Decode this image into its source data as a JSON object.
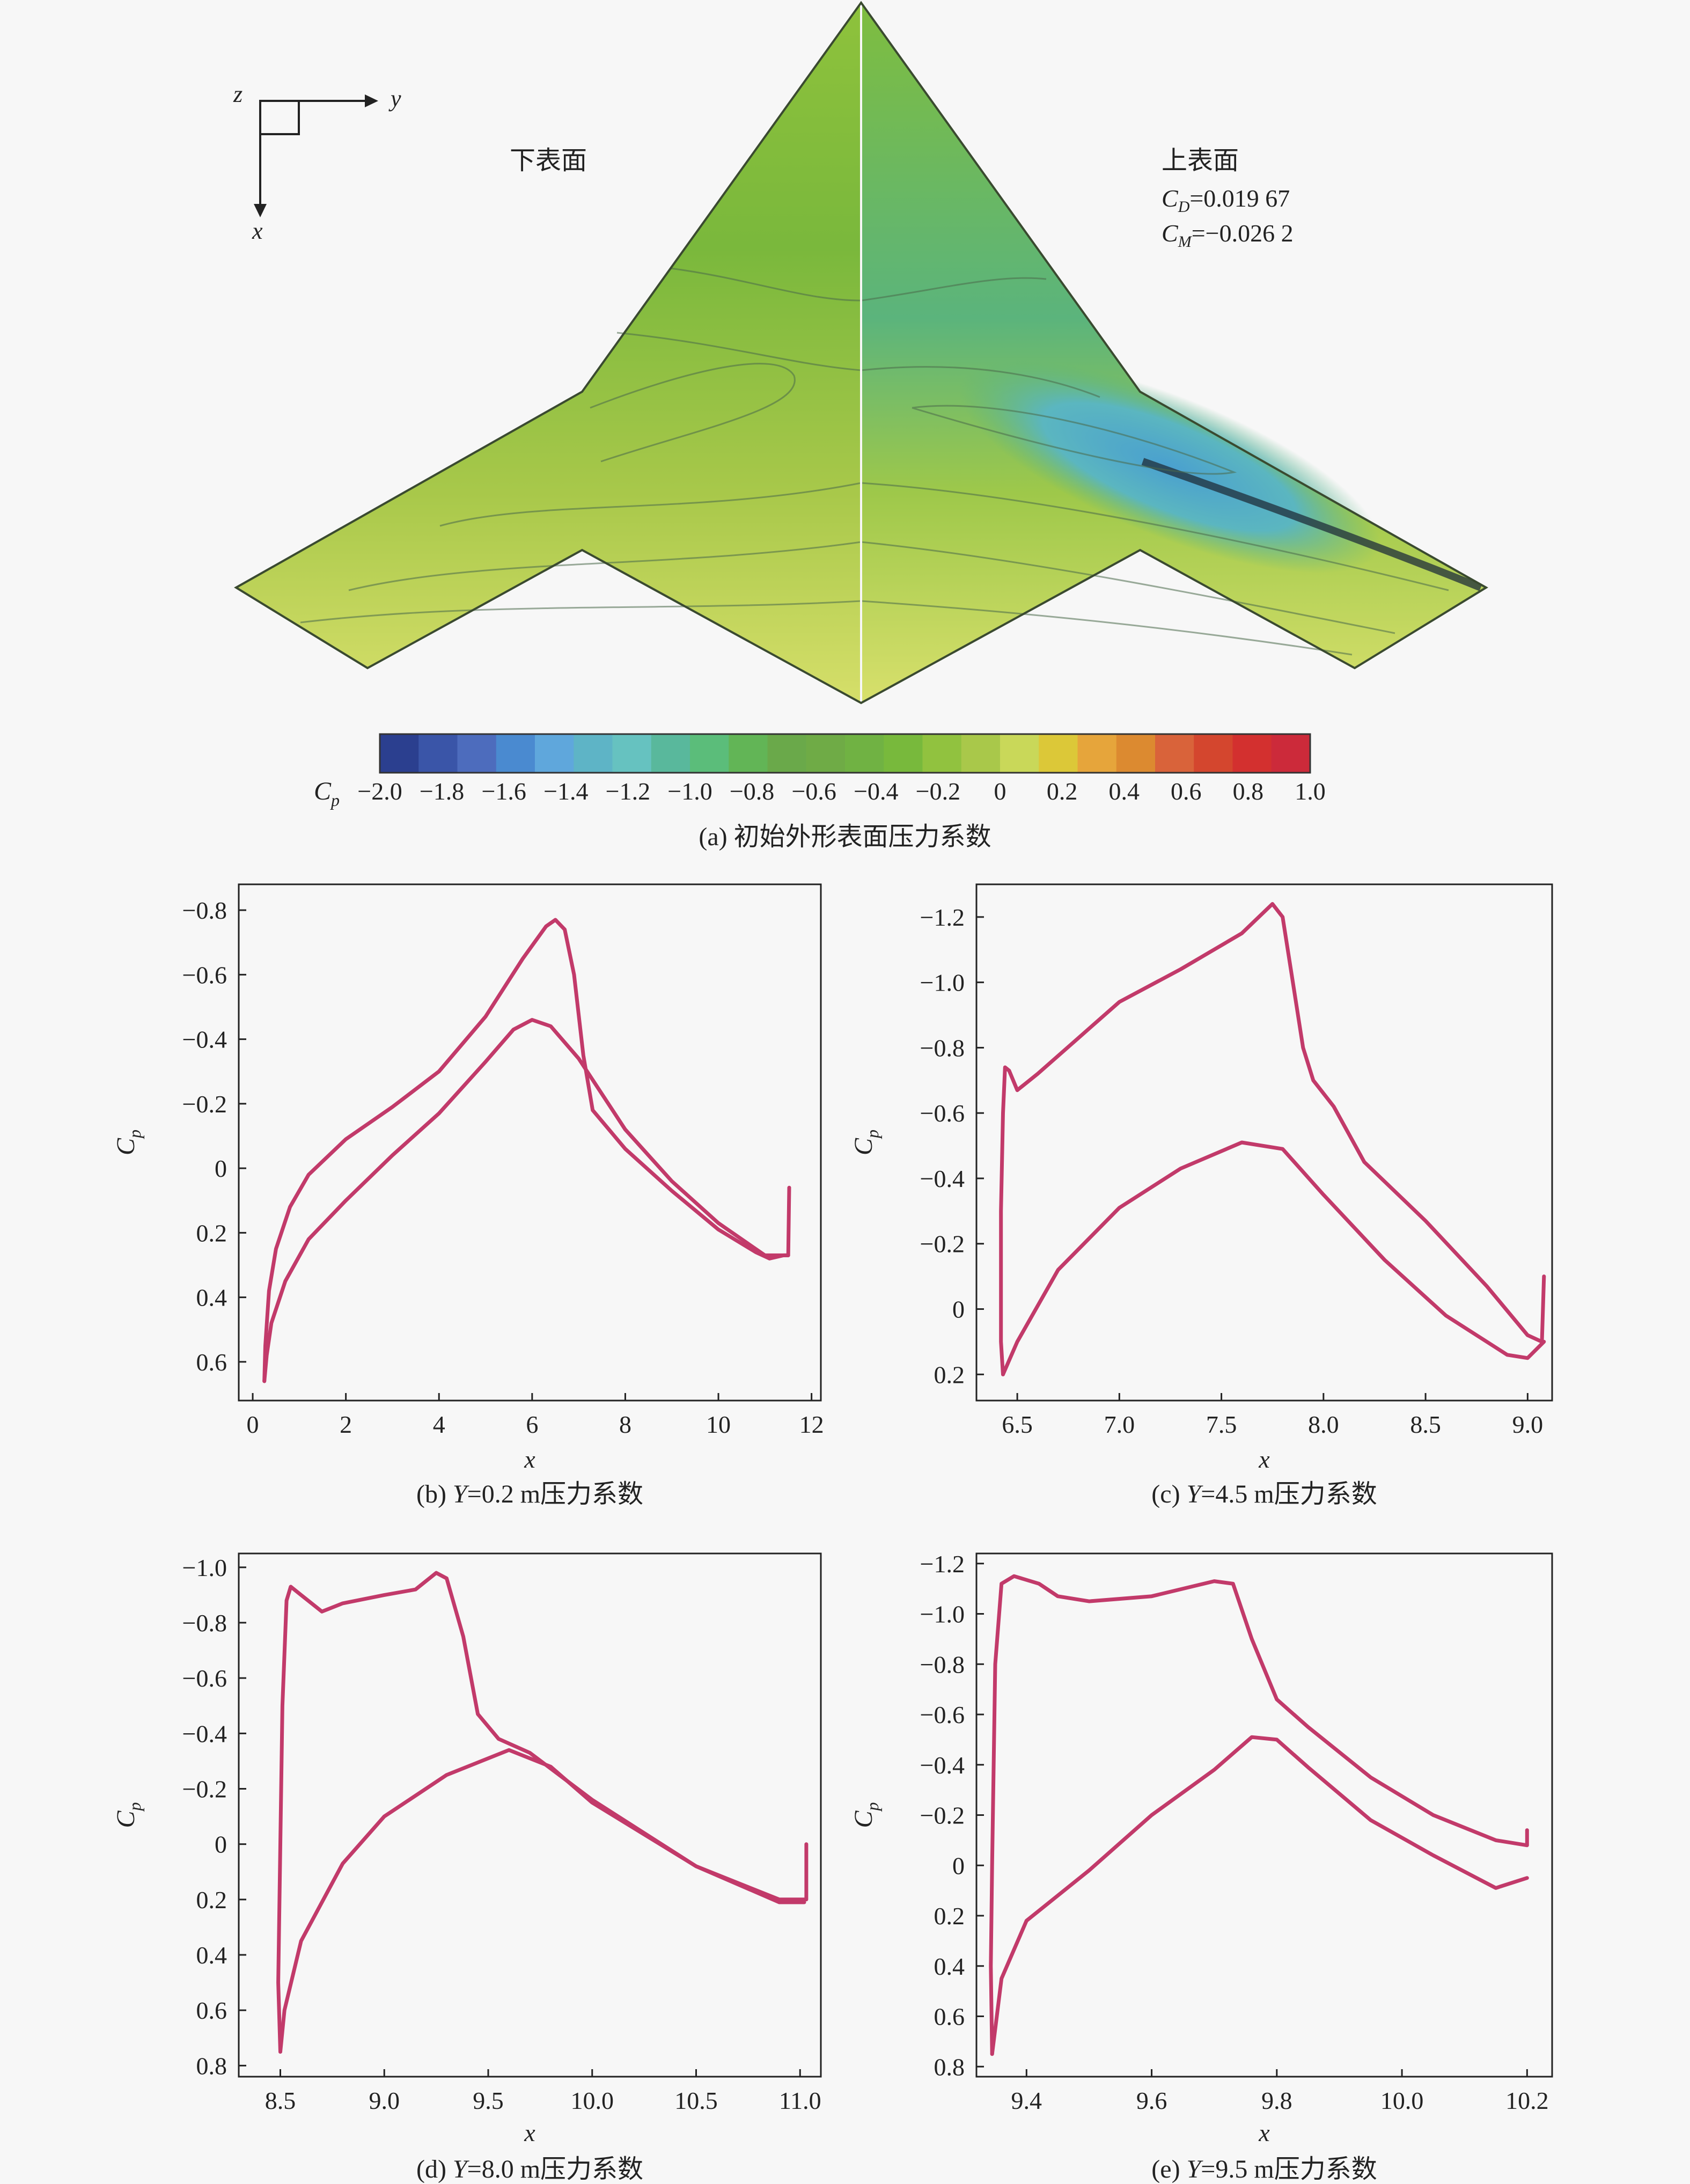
{
  "panel_a": {
    "axes_glyph": {
      "z": "z",
      "y": "y",
      "x": "x"
    },
    "lower_label": "下表面",
    "upper_label": "上表面",
    "cd_sym": "C",
    "cd_sub": "D",
    "cd_val": "=0.019 67",
    "cm_sym": "C",
    "cm_sub": "M",
    "cm_val": "=−0.026 2",
    "colorbar": {
      "symbol": "C",
      "symbol_sub": "p",
      "ticks": [
        "−2.0",
        "−1.8",
        "−1.6",
        "−1.4",
        "−1.2",
        "−1.0",
        "−0.8",
        "−0.6",
        "−0.4",
        "−0.2",
        "0",
        "0.2",
        "0.4",
        "0.6",
        "0.8",
        "1.0"
      ],
      "colors": [
        "#2b3f8f",
        "#3a55a8",
        "#4d6cbd",
        "#4a8ad0",
        "#5fa7dc",
        "#5eb4c6",
        "#66c2c0",
        "#59b89c",
        "#5bbd7a",
        "#62b556",
        "#6aa94a",
        "#6fab46",
        "#70b243",
        "#78b93c",
        "#91c23f",
        "#a9c84a",
        "#c9d859",
        "#dcc838",
        "#e6a53b",
        "#dc8a30",
        "#d9633a",
        "#d4462e",
        "#d3302f",
        "#cc2a3a"
      ]
    },
    "caption": "(a) 初始外形表面压力系数"
  },
  "chart_data": [
    {
      "type": "line",
      "caption_prefix": "(b) ",
      "caption_var": "Y",
      "caption_rest": "=0.2 m压力系数",
      "xlabel": "x",
      "ylabel": "C",
      "ylabel_sub": "p",
      "xlim": [
        -0.3,
        12.2
      ],
      "ylim": [
        -0.88,
        0.72
      ],
      "y_inverted": true,
      "xticks": [
        0,
        2,
        4,
        6,
        8,
        10,
        12
      ],
      "yticks": [
        -0.8,
        -0.6,
        -0.4,
        -0.2,
        0,
        0.2,
        0.4,
        0.6
      ],
      "series": [
        {
          "points": [
            [
              0.25,
              0.66
            ],
            [
              0.27,
              0.55
            ],
            [
              0.35,
              0.38
            ],
            [
              0.5,
              0.25
            ],
            [
              0.8,
              0.12
            ],
            [
              1.2,
              0.02
            ],
            [
              2,
              -0.09
            ],
            [
              3,
              -0.19
            ],
            [
              4,
              -0.3
            ],
            [
              5,
              -0.47
            ],
            [
              5.8,
              -0.65
            ],
            [
              6.3,
              -0.75
            ],
            [
              6.5,
              -0.77
            ],
            [
              6.7,
              -0.74
            ],
            [
              6.9,
              -0.6
            ],
            [
              7.1,
              -0.35
            ],
            [
              7.3,
              -0.18
            ],
            [
              8,
              -0.06
            ],
            [
              9,
              0.07
            ],
            [
              10,
              0.19
            ],
            [
              10.8,
              0.26
            ],
            [
              11.1,
              0.28
            ],
            [
              11.4,
              0.27
            ],
            [
              11.5,
              0.27
            ],
            [
              11.52,
              0.06
            ]
          ]
        },
        {
          "points": [
            [
              0.25,
              0.66
            ],
            [
              0.3,
              0.58
            ],
            [
              0.4,
              0.48
            ],
            [
              0.7,
              0.35
            ],
            [
              1.2,
              0.22
            ],
            [
              2,
              0.1
            ],
            [
              3,
              -0.04
            ],
            [
              4,
              -0.17
            ],
            [
              5,
              -0.33
            ],
            [
              5.6,
              -0.43
            ],
            [
              6,
              -0.46
            ],
            [
              6.4,
              -0.44
            ],
            [
              7,
              -0.34
            ],
            [
              8,
              -0.12
            ],
            [
              9,
              0.04
            ],
            [
              10,
              0.17
            ],
            [
              11,
              0.27
            ],
            [
              11.4,
              0.27
            ],
            [
              11.5,
              0.27
            ]
          ]
        }
      ]
    },
    {
      "type": "line",
      "caption_prefix": "(c) ",
      "caption_var": "Y",
      "caption_rest": "=4.5 m压力系数",
      "xlabel": "x",
      "ylabel": "C",
      "ylabel_sub": "p",
      "xlim": [
        6.3,
        9.12
      ],
      "ylim": [
        -1.3,
        0.28
      ],
      "y_inverted": true,
      "xticks": [
        6.5,
        7.0,
        7.5,
        8.0,
        8.5,
        9.0
      ],
      "yticks": [
        -1.2,
        -1.0,
        -0.8,
        -0.6,
        -0.4,
        -0.2,
        0,
        0.2
      ],
      "series": [
        {
          "points": [
            [
              6.43,
              0.2
            ],
            [
              6.42,
              0.1
            ],
            [
              6.42,
              -0.3
            ],
            [
              6.43,
              -0.6
            ],
            [
              6.44,
              -0.74
            ],
            [
              6.46,
              -0.73
            ],
            [
              6.5,
              -0.67
            ],
            [
              6.6,
              -0.72
            ],
            [
              6.8,
              -0.83
            ],
            [
              7,
              -0.94
            ],
            [
              7.3,
              -1.04
            ],
            [
              7.6,
              -1.15
            ],
            [
              7.75,
              -1.24
            ],
            [
              7.8,
              -1.2
            ],
            [
              7.85,
              -1.0
            ],
            [
              7.9,
              -0.8
            ],
            [
              7.95,
              -0.7
            ],
            [
              8.05,
              -0.62
            ],
            [
              8.2,
              -0.45
            ],
            [
              8.5,
              -0.27
            ],
            [
              8.8,
              -0.07
            ],
            [
              9.0,
              0.08
            ],
            [
              9.07,
              0.1
            ],
            [
              9.08,
              -0.1
            ]
          ]
        },
        {
          "points": [
            [
              6.43,
              0.2
            ],
            [
              6.5,
              0.1
            ],
            [
              6.7,
              -0.12
            ],
            [
              7.0,
              -0.31
            ],
            [
              7.3,
              -0.43
            ],
            [
              7.6,
              -0.51
            ],
            [
              7.8,
              -0.49
            ],
            [
              8.0,
              -0.35
            ],
            [
              8.3,
              -0.15
            ],
            [
              8.6,
              0.02
            ],
            [
              8.9,
              0.14
            ],
            [
              9.0,
              0.15
            ],
            [
              9.08,
              0.1
            ]
          ]
        }
      ]
    },
    {
      "type": "line",
      "caption_prefix": "(d) ",
      "caption_var": "Y",
      "caption_rest": "=8.0 m压力系数",
      "xlabel": "x",
      "ylabel": "C",
      "ylabel_sub": "p",
      "xlim": [
        8.3,
        11.1
      ],
      "ylim": [
        -1.05,
        0.84
      ],
      "y_inverted": true,
      "xticks": [
        8.5,
        9.0,
        9.5,
        10.0,
        10.5,
        11.0
      ],
      "yticks": [
        -1.0,
        -0.8,
        -0.6,
        -0.4,
        -0.2,
        0,
        0.2,
        0.4,
        0.6,
        0.8
      ],
      "series": [
        {
          "points": [
            [
              8.5,
              0.75
            ],
            [
              8.49,
              0.5
            ],
            [
              8.5,
              0.0
            ],
            [
              8.51,
              -0.5
            ],
            [
              8.53,
              -0.88
            ],
            [
              8.55,
              -0.93
            ],
            [
              8.6,
              -0.9
            ],
            [
              8.7,
              -0.84
            ],
            [
              8.8,
              -0.87
            ],
            [
              9.0,
              -0.9
            ],
            [
              9.15,
              -0.92
            ],
            [
              9.25,
              -0.98
            ],
            [
              9.3,
              -0.96
            ],
            [
              9.38,
              -0.75
            ],
            [
              9.45,
              -0.47
            ],
            [
              9.55,
              -0.38
            ],
            [
              9.7,
              -0.33
            ],
            [
              10,
              -0.16
            ],
            [
              10.5,
              0.08
            ],
            [
              10.9,
              0.2
            ],
            [
              11.0,
              0.2
            ],
            [
              11.03,
              0.2
            ],
            [
              11.03,
              0.0
            ]
          ]
        },
        {
          "points": [
            [
              8.5,
              0.75
            ],
            [
              8.52,
              0.6
            ],
            [
              8.6,
              0.35
            ],
            [
              8.8,
              0.07
            ],
            [
              9.0,
              -0.1
            ],
            [
              9.3,
              -0.25
            ],
            [
              9.6,
              -0.34
            ],
            [
              9.8,
              -0.28
            ],
            [
              10,
              -0.15
            ],
            [
              10.5,
              0.08
            ],
            [
              10.9,
              0.21
            ],
            [
              11.02,
              0.21
            ]
          ]
        }
      ]
    },
    {
      "type": "line",
      "caption_prefix": "(e) ",
      "caption_var": "Y",
      "caption_rest": "=9.5 m压力系数",
      "xlabel": "x",
      "ylabel": "C",
      "ylabel_sub": "p",
      "xlim": [
        9.32,
        10.24
      ],
      "ylim": [
        -1.24,
        0.84
      ],
      "y_inverted": true,
      "xticks": [
        9.4,
        9.6,
        9.8,
        10.0,
        10.2
      ],
      "yticks": [
        -1.2,
        -1.0,
        -0.8,
        -0.6,
        -0.4,
        -0.2,
        0,
        0.2,
        0.4,
        0.6,
        0.8
      ],
      "series": [
        {
          "points": [
            [
              9.345,
              0.75
            ],
            [
              9.343,
              0.4
            ],
            [
              9.345,
              0.0
            ],
            [
              9.35,
              -0.8
            ],
            [
              9.36,
              -1.12
            ],
            [
              9.38,
              -1.15
            ],
            [
              9.42,
              -1.12
            ],
            [
              9.45,
              -1.07
            ],
            [
              9.5,
              -1.05
            ],
            [
              9.6,
              -1.07
            ],
            [
              9.7,
              -1.13
            ],
            [
              9.73,
              -1.12
            ],
            [
              9.76,
              -0.9
            ],
            [
              9.8,
              -0.66
            ],
            [
              9.85,
              -0.55
            ],
            [
              9.95,
              -0.35
            ],
            [
              10.05,
              -0.2
            ],
            [
              10.15,
              -0.1
            ],
            [
              10.2,
              -0.08
            ],
            [
              10.2,
              -0.14
            ]
          ]
        },
        {
          "points": [
            [
              9.345,
              0.75
            ],
            [
              9.36,
              0.45
            ],
            [
              9.4,
              0.22
            ],
            [
              9.5,
              0.02
            ],
            [
              9.6,
              -0.2
            ],
            [
              9.7,
              -0.38
            ],
            [
              9.76,
              -0.51
            ],
            [
              9.8,
              -0.5
            ],
            [
              9.85,
              -0.39
            ],
            [
              9.95,
              -0.18
            ],
            [
              10.05,
              -0.04
            ],
            [
              10.15,
              0.09
            ],
            [
              10.2,
              0.05
            ]
          ]
        }
      ]
    }
  ]
}
